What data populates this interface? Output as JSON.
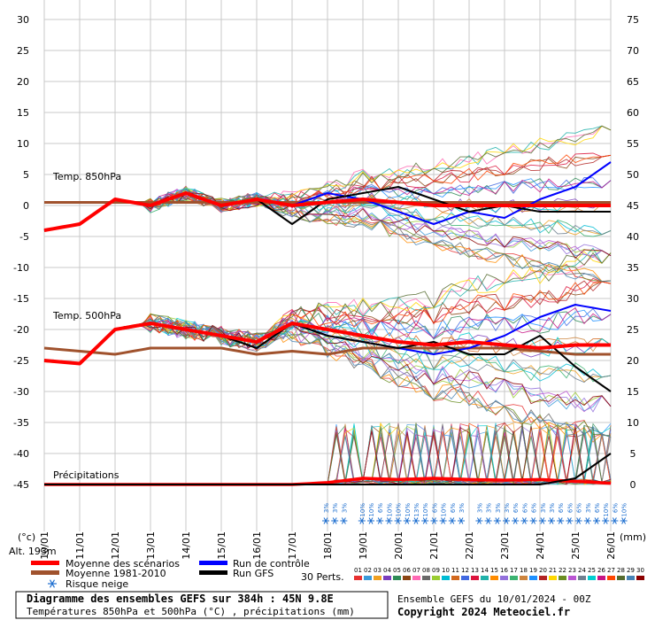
{
  "chart_data": [
    {
      "type": "line",
      "panel": "temp850",
      "label": "Temp. 850hPa",
      "left_axis_unit": "°C",
      "x": [
        "10/01 00Z",
        "11/01 00Z",
        "12/01 00Z",
        "13/01 00Z",
        "14/01 00Z",
        "15/01 00Z",
        "16/01 00Z",
        "17/01 00Z",
        "18/01 00Z",
        "19/01 00Z",
        "20/01 00Z",
        "21/01 00Z",
        "22/01 00Z",
        "23/01 00Z",
        "24/01 00Z",
        "25/01 00Z",
        "26/01 00Z"
      ],
      "series": [
        {
          "name": "Moyenne des scénarios",
          "color": "#ff0000",
          "values": [
            -4,
            -3,
            1,
            0,
            2,
            0,
            1,
            0,
            0.5,
            1,
            0.5,
            0,
            0,
            0,
            0,
            0,
            0
          ]
        },
        {
          "name": "Moyenne 1981-2010",
          "color": "#a0522d",
          "values": [
            0.5,
            0.5,
            0.5,
            0.5,
            0.5,
            0.5,
            0.5,
            0.5,
            0.5,
            0.5,
            0.5,
            0.5,
            0.5,
            0.5,
            0.5,
            0.5,
            0.5
          ]
        },
        {
          "name": "Run de contrôle",
          "color": "#0000ff",
          "values": [
            -4,
            -3,
            1,
            0,
            2,
            0,
            1,
            0,
            2,
            1,
            -1,
            -3,
            -1,
            -2,
            1,
            3,
            7
          ]
        },
        {
          "name": "Run GFS",
          "color": "#000000",
          "values": [
            -4,
            -3,
            1,
            0,
            2,
            0,
            1,
            -3,
            1,
            2,
            3,
            1,
            -1,
            0,
            -1,
            -1,
            -1
          ]
        }
      ],
      "ylim": [
        -45,
        30
      ]
    },
    {
      "type": "line",
      "panel": "temp500",
      "label": "Temp. 500hPa",
      "x": [
        "10/01 00Z",
        "11/01 00Z",
        "12/01 00Z",
        "13/01 00Z",
        "14/01 00Z",
        "15/01 00Z",
        "16/01 00Z",
        "17/01 00Z",
        "18/01 00Z",
        "19/01 00Z",
        "20/01 00Z",
        "21/01 00Z",
        "22/01 00Z",
        "23/01 00Z",
        "24/01 00Z",
        "25/01 00Z",
        "26/01 00Z"
      ],
      "series": [
        {
          "name": "Moyenne des scénarios",
          "color": "#ff0000",
          "values": [
            -25,
            -25.5,
            -20,
            -19,
            -20,
            -21,
            -22,
            -19,
            -20,
            -21,
            -22,
            -22.5,
            -22,
            -22.5,
            -23,
            -22.5,
            -22.5
          ]
        },
        {
          "name": "Moyenne 1981-2010",
          "color": "#a0522d",
          "values": [
            -23,
            -23.5,
            -24,
            -23,
            -23,
            -23,
            -24,
            -23.5,
            -24,
            -23,
            -23,
            -23,
            -23,
            -23,
            -23.5,
            -24,
            -24
          ]
        },
        {
          "name": "Run de contrôle",
          "color": "#0000ff",
          "values": [
            -25,
            -25.5,
            -20,
            -19,
            -20,
            -21,
            -22,
            -19,
            -21,
            -22,
            -23,
            -24,
            -23,
            -21,
            -18,
            -16,
            -17
          ]
        },
        {
          "name": "Run GFS",
          "color": "#000000",
          "values": [
            -25,
            -25.5,
            -20,
            -19,
            -20,
            -21,
            -23,
            -19,
            -21,
            -22,
            -23,
            -22,
            -24,
            -24,
            -21,
            -26,
            -30
          ]
        }
      ],
      "ylim": [
        -45,
        30
      ]
    },
    {
      "type": "line",
      "panel": "precipitations",
      "label": "Précipitations",
      "right_axis_unit": "(mm)",
      "x": [
        "10/01 00Z",
        "11/01 00Z",
        "12/01 00Z",
        "13/01 00Z",
        "14/01 00Z",
        "15/01 00Z",
        "16/01 00Z",
        "17/01 00Z",
        "18/01 00Z",
        "19/01 00Z",
        "20/01 00Z",
        "21/01 00Z",
        "22/01 00Z",
        "23/01 00Z",
        "24/01 00Z",
        "25/01 00Z",
        "26/01 00Z"
      ],
      "series": [
        {
          "name": "Moyenne des scénarios",
          "color": "#ff0000",
          "values": [
            0,
            0,
            0,
            0,
            0,
            0,
            0,
            0,
            0.3,
            1,
            0.8,
            1,
            0.8,
            0.7,
            0.8,
            0.5,
            0.2
          ]
        },
        {
          "name": "Run GFS",
          "color": "#000000",
          "values": [
            0,
            0,
            0,
            0,
            0,
            0,
            0,
            0,
            0,
            0,
            0,
            0,
            0,
            0,
            0,
            1,
            5
          ]
        }
      ],
      "ylim": [
        0,
        75
      ]
    }
  ],
  "axes": {
    "left_ticks": [
      "30",
      "25",
      "20",
      "15",
      "10",
      "5",
      "0",
      "-5",
      "-10",
      "-15",
      "-20",
      "-25",
      "-30",
      "-35",
      "-40",
      "-45"
    ],
    "right_ticks": [
      "75",
      "70",
      "65",
      "60",
      "55",
      "50",
      "45",
      "40",
      "35",
      "30",
      "25",
      "20",
      "15",
      "10",
      "5",
      "0"
    ],
    "left_unit": "(°c)",
    "right_unit": "(mm)",
    "altitude": "Alt. 193m",
    "dates": [
      "10/01",
      "11/01",
      "12/01",
      "13/01",
      "14/01",
      "15/01",
      "16/01",
      "17/01",
      "18/01",
      "19/01",
      "20/01",
      "21/01",
      "22/01",
      "23/01",
      "24/01",
      "25/01",
      "26/01"
    ]
  },
  "snow_risk": {
    "values": [
      "3%",
      "3%",
      "3%",
      "",
      "10%",
      "10%",
      "6%",
      "10%",
      "10%",
      "10%",
      "13%",
      "10%",
      "6%",
      "10%",
      "6%",
      "3%",
      "",
      "3%",
      "3%",
      "3%",
      "3%",
      "6%",
      "6%",
      "6%",
      "3%",
      "3%",
      "6%",
      "6%",
      "6%",
      "3%",
      "6%",
      "10%",
      "6%",
      "10%"
    ],
    "color": "#1e6fd0"
  },
  "legend": {
    "items": [
      {
        "label": "Moyenne des scénarios",
        "color": "#ff0000"
      },
      {
        "label": "Run de contrôle",
        "color": "#0000ff"
      },
      {
        "label": "Moyenne 1981-2010",
        "color": "#a0522d"
      },
      {
        "label": "Run GFS",
        "color": "#000000"
      },
      {
        "label": "Risque neige",
        "icon": "snowflake-icon"
      }
    ],
    "perts_label": "30 Perts.",
    "perts": [
      "01",
      "02",
      "03",
      "04",
      "05",
      "06",
      "07",
      "08",
      "09",
      "10",
      "11",
      "12",
      "13",
      "14",
      "15",
      "16",
      "17",
      "18",
      "19",
      "20",
      "21",
      "22",
      "23",
      "24",
      "25",
      "26",
      "27",
      "28",
      "29",
      "30"
    ],
    "pert_colors": [
      "#e83030",
      "#3a9ad9",
      "#f0a020",
      "#7a3dbd",
      "#2e8b57",
      "#8b4513",
      "#ff69b4",
      "#696969",
      "#9acd32",
      "#00bcd4",
      "#d2691e",
      "#4169e1",
      "#dc143c",
      "#20b2aa",
      "#ff8c00",
      "#9370db",
      "#3cb371",
      "#cd853f",
      "#1e90ff",
      "#b22222",
      "#ffd700",
      "#6b8e23",
      "#ba55d3",
      "#708090",
      "#00ced1",
      "#c71585",
      "#ff4500",
      "#556b2f",
      "#4682b4",
      "#8b0000"
    ]
  },
  "footer": {
    "title": "Diagramme des ensembles GEFS sur 384h : 45N 9.8E",
    "subtitle": "Températures 850hPa et 500hPa (°C) , précipitations (mm)",
    "run": "Ensemble GEFS du 10/01/2024 - 00Z",
    "copyright": "Copyright 2024 Meteociel.fr"
  }
}
